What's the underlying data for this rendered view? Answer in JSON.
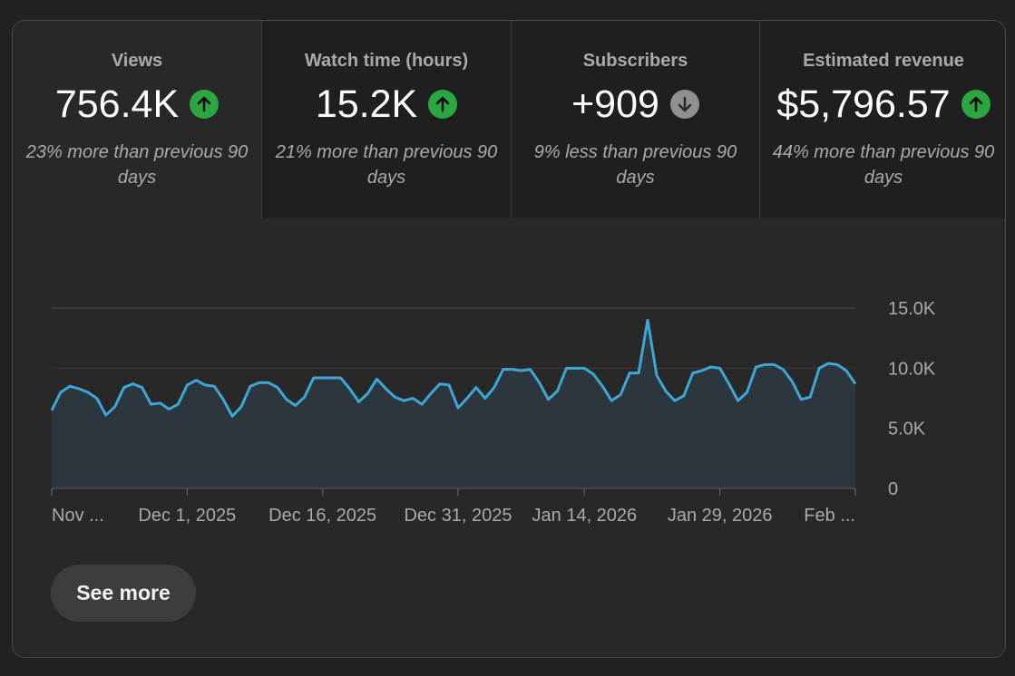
{
  "tabs": [
    {
      "title": "Views",
      "value": "756.4K",
      "trend": "up",
      "desc": "23% more than previous 90 days",
      "active": true
    },
    {
      "title": "Watch time (hours)",
      "value": "15.2K",
      "trend": "up",
      "desc": "21% more than previous 90 days",
      "active": false
    },
    {
      "title": "Subscribers",
      "value": "+909",
      "trend": "down",
      "desc": "9% less than previous 90 days",
      "active": false
    },
    {
      "title": "Estimated revenue",
      "value": "$5,796.57",
      "trend": "up",
      "desc": "44% more than previous 90 days",
      "active": false
    }
  ],
  "see_more_label": "See more",
  "colors": {
    "line": "#3ea6d6",
    "trend_up": "#2ba640",
    "trend_down": "#909090"
  },
  "chart_data": {
    "type": "area",
    "title": "",
    "xlabel": "",
    "ylabel": "",
    "ylim": [
      0,
      15000
    ],
    "y_ticks": [
      {
        "value": 0,
        "label": "0"
      },
      {
        "value": 5000,
        "label": "5.0K"
      },
      {
        "value": 10000,
        "label": "10.0K"
      },
      {
        "value": 15000,
        "label": "15.0K"
      }
    ],
    "x_tick_labels": [
      {
        "day": 0,
        "label": "Nov ..."
      },
      {
        "day": 15,
        "label": "Dec 1, 2025"
      },
      {
        "day": 30,
        "label": "Dec 16, 2025"
      },
      {
        "day": 45,
        "label": "Dec 31, 2025"
      },
      {
        "day": 59,
        "label": "Jan 14, 2026"
      },
      {
        "day": 74,
        "label": "Jan 29, 2026"
      },
      {
        "day": 89,
        "label": "Feb ..."
      }
    ],
    "series": [
      {
        "values": [
          6500,
          8000,
          8500,
          8300,
          8000,
          7500,
          6100,
          6800,
          8400,
          8700,
          8400,
          7000,
          7100,
          6600,
          7000,
          8600,
          9000,
          8600,
          8500,
          7400,
          6000,
          6800,
          8500,
          8800,
          8800,
          8400,
          7400,
          6900,
          7600,
          9200,
          9200,
          9200,
          9200,
          8300,
          7200,
          7900,
          9100,
          8300,
          7600,
          7300,
          7500,
          7000,
          7900,
          8700,
          8600,
          6700,
          7500,
          8400,
          7500,
          8400,
          9900,
          9900,
          9800,
          9900,
          8800,
          7400,
          8100,
          10000,
          10000,
          10000,
          9500,
          8500,
          7300,
          7800,
          9600,
          9600,
          14000,
          9400,
          8100,
          7300,
          7700,
          9600,
          9800,
          10100,
          10000,
          8700,
          7300,
          8000,
          10100,
          10300,
          10300,
          9900,
          8900,
          7400,
          7600,
          10000,
          10400,
          10300,
          9800,
          8700
        ]
      }
    ]
  }
}
